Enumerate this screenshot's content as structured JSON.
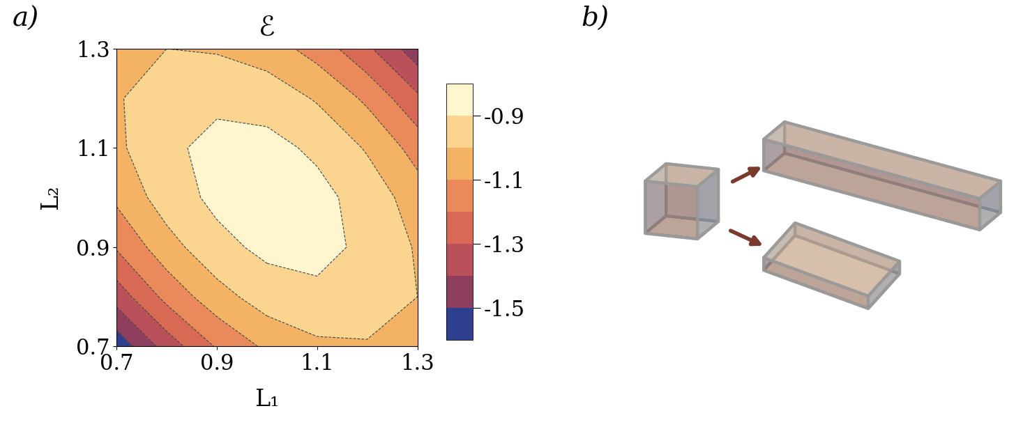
{
  "chart_data": {
    "type": "contour",
    "title": "ℰ",
    "annotations": [
      "a)"
    ],
    "x_label": "L₁",
    "y_label": "L₂",
    "x": [
      0.7,
      0.8,
      0.9,
      1.0,
      1.1,
      1.2,
      1.3
    ],
    "y": [
      0.7,
      0.8,
      0.9,
      1.0,
      1.1,
      1.2,
      1.3
    ],
    "cells": [
      [
        -1.57,
        -1.356,
        -1.19,
        -1.08,
        -1.02,
        -1.01,
        -1.05
      ],
      [
        -1.356,
        -1.17,
        -1.04,
        -0.95,
        -0.92,
        -0.94,
        -1.0
      ],
      [
        -1.19,
        -1.04,
        -0.93,
        -0.876,
        -0.872,
        -0.92,
        -1.01
      ],
      [
        -1.08,
        -0.95,
        -0.876,
        -0.85,
        -0.87,
        -0.94,
        -1.05
      ],
      [
        -1.02,
        -0.92,
        -0.872,
        -0.87,
        -0.918,
        -1.01,
        -1.14
      ],
      [
        -1.01,
        -0.94,
        -0.92,
        -0.94,
        -1.01,
        -1.12,
        -1.28
      ],
      [
        -1.05,
        -1.0,
        -1.01,
        -1.05,
        -1.14,
        -1.28,
        -1.46
      ]
    ],
    "xlim": [
      0.7,
      1.3
    ],
    "ylim": [
      0.7,
      1.3
    ],
    "xticks": [
      0.7,
      0.9,
      1.1,
      1.3
    ],
    "yticks": [
      0.7,
      0.9,
      1.1,
      1.3
    ],
    "colorbar": {
      "range": [
        -1.6,
        -0.8
      ],
      "ticks": [
        -0.9,
        -1.1,
        -1.3,
        -1.5
      ],
      "levels": [
        -1.6,
        -1.5,
        -1.4,
        -1.3,
        -1.2,
        -1.1,
        -1.0,
        -0.9,
        -0.8
      ],
      "colors": [
        "#2f3f8f",
        "#8e3f5f",
        "#b9505a",
        "#d86a55",
        "#ea8a5a",
        "#f4b265",
        "#fbd48f",
        "#fff6cf"
      ]
    }
  },
  "diagram": {
    "label": "b)"
  }
}
